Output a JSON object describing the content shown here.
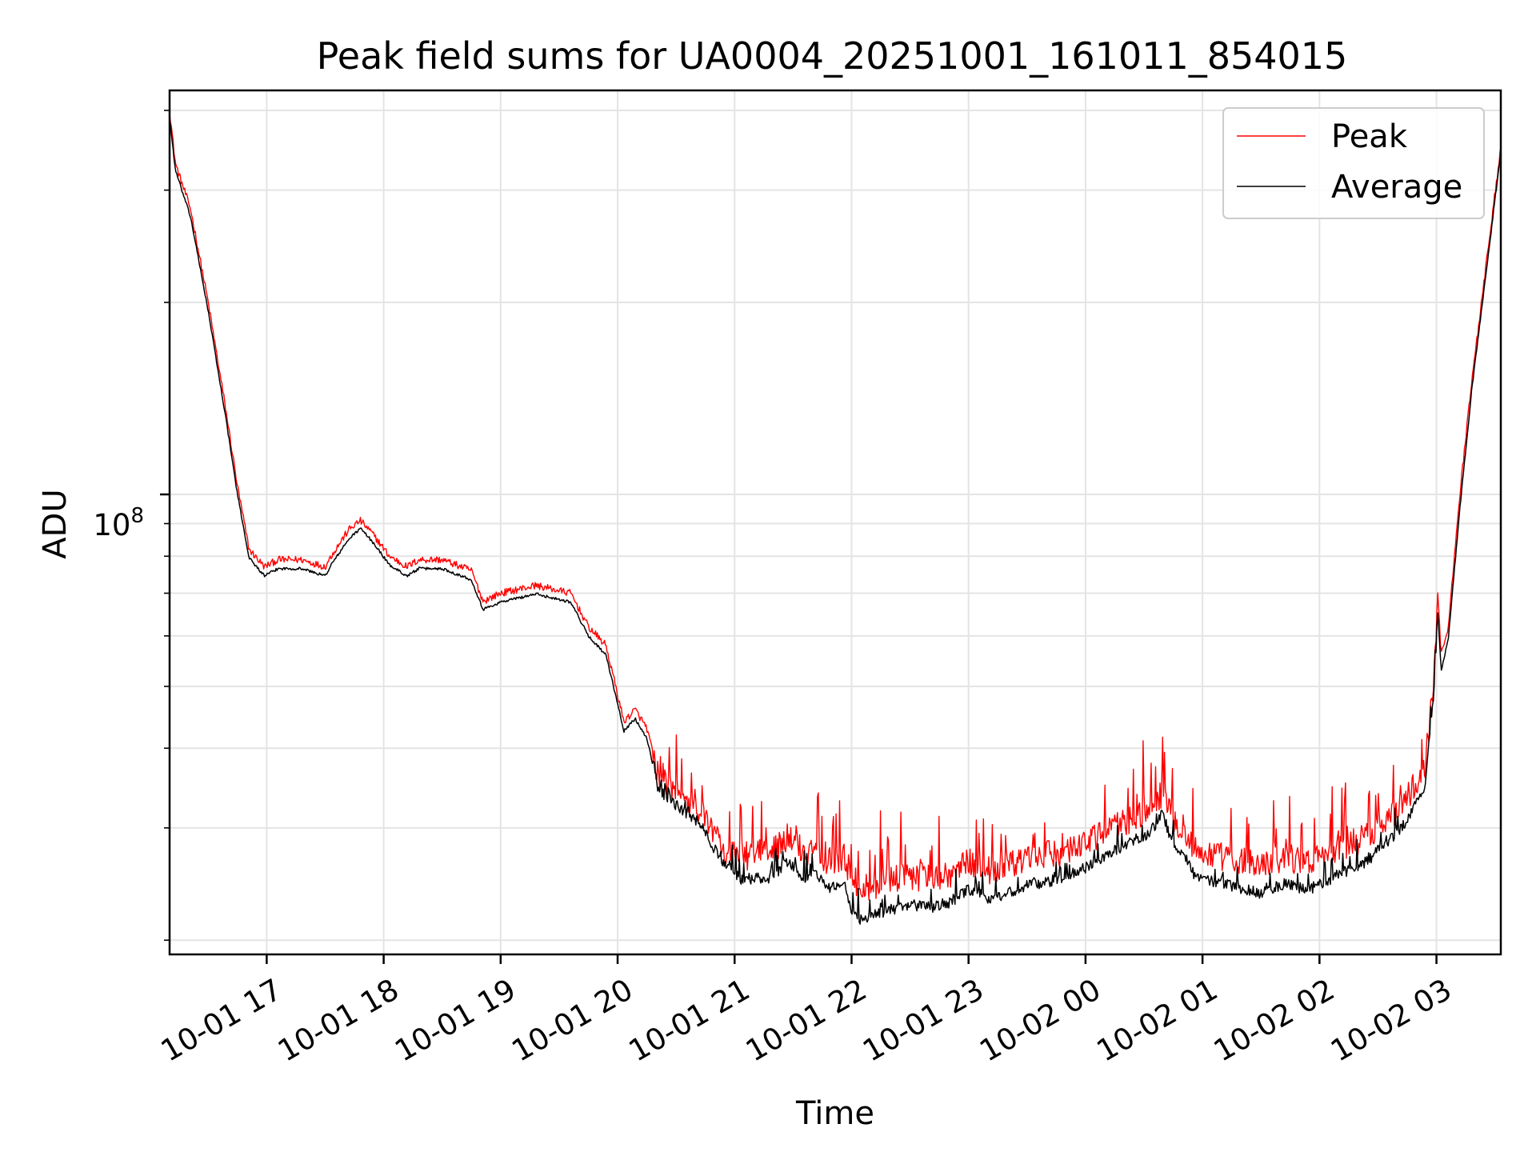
{
  "chart_data": {
    "type": "line",
    "title": "Peak field sums for UA0004_20251001_161011_854015",
    "xlabel": "Time",
    "ylabel": "ADU",
    "yscale": "log",
    "ylim": [
      19000000,
      430000000
    ],
    "xlim_hours": [
      16.17,
      27.55
    ],
    "grid": true,
    "legend_position": "upper right",
    "x_ticks": [
      "10-01 17",
      "10-01 18",
      "10-01 19",
      "10-01 20",
      "10-01 21",
      "10-01 22",
      "10-01 23",
      "10-02 00",
      "10-02 01",
      "10-02 02",
      "10-02 03"
    ],
    "x_tick_hours": [
      17,
      18,
      19,
      20,
      21,
      22,
      23,
      24,
      25,
      26,
      27
    ],
    "y_major_tick": {
      "base": "10",
      "exp": "8",
      "value": 100000000
    },
    "series": [
      {
        "name": "Peak",
        "color": "#ff0000",
        "x_hours": [
          16.17,
          16.22,
          16.35,
          16.5,
          16.65,
          16.75,
          16.85,
          16.98,
          17.1,
          17.3,
          17.5,
          17.55,
          17.7,
          17.8,
          17.9,
          18.05,
          18.2,
          18.3,
          18.5,
          18.75,
          18.85,
          19.0,
          19.3,
          19.6,
          19.75,
          19.9,
          20.03,
          20.05,
          20.15,
          20.25,
          20.35,
          20.5,
          20.7,
          20.9,
          21.05,
          21.3,
          21.45,
          21.6,
          21.7,
          21.8,
          21.95,
          22.0,
          22.1,
          22.3,
          22.5,
          22.7,
          22.85,
          23.0,
          23.2,
          23.5,
          23.8,
          24.1,
          24.3,
          24.55,
          24.65,
          24.75,
          24.85,
          24.95,
          25.2,
          25.5,
          25.7,
          25.9,
          26.1,
          26.4,
          26.7,
          26.9,
          26.98,
          27.01,
          27.04,
          27.1,
          27.2,
          27.3,
          27.45,
          27.55
        ],
        "values": [
          400000000,
          330000000,
          280000000,
          200000000,
          136000000,
          103000000,
          82000000,
          77000000,
          79000000,
          79000000,
          77000000,
          80000000,
          88000000,
          91000000,
          87000000,
          80000000,
          77000000,
          79000000,
          79000000,
          76000000,
          68000000,
          70000000,
          72000000,
          70000000,
          62000000,
          58000000,
          46000000,
          44000000,
          46000000,
          43000000,
          36000000,
          34000000,
          32000000,
          28000000,
          27000000,
          27500000,
          29000000,
          27500000,
          28000000,
          26500000,
          27000000,
          24500000,
          24000000,
          24800000,
          25200000,
          25000000,
          25500000,
          26500000,
          25700000,
          26800000,
          27500000,
          29000000,
          30500000,
          32000000,
          34000000,
          31000000,
          29500000,
          27500000,
          27000000,
          26200000,
          27000000,
          26500000,
          27500000,
          29000000,
          32500000,
          37000000,
          52000000,
          70000000,
          56000000,
          62000000,
          100000000,
          150000000,
          250000000,
          350000000
        ]
      },
      {
        "name": "Average",
        "color": "#000000",
        "x_hours": [
          16.17,
          16.22,
          16.35,
          16.5,
          16.65,
          16.75,
          16.85,
          16.98,
          17.1,
          17.3,
          17.5,
          17.55,
          17.7,
          17.8,
          17.9,
          18.05,
          18.2,
          18.3,
          18.5,
          18.75,
          18.85,
          19.0,
          19.3,
          19.6,
          19.75,
          19.9,
          20.03,
          20.05,
          20.15,
          20.25,
          20.35,
          20.5,
          20.7,
          20.9,
          21.05,
          21.3,
          21.45,
          21.6,
          21.7,
          21.8,
          21.95,
          22.0,
          22.1,
          22.3,
          22.5,
          22.7,
          22.85,
          23.0,
          23.2,
          23.5,
          23.8,
          24.1,
          24.3,
          24.55,
          24.65,
          24.75,
          24.85,
          24.95,
          25.2,
          25.5,
          25.7,
          25.9,
          26.1,
          26.4,
          26.7,
          26.9,
          26.98,
          27.01,
          27.04,
          27.1,
          27.2,
          27.3,
          27.45,
          27.55
        ],
        "values": [
          390000000,
          322000000,
          272000000,
          194000000,
          132000000,
          100000000,
          79500000,
          74500000,
          76500000,
          76500000,
          74500000,
          77500000,
          85000000,
          88500000,
          84500000,
          77500000,
          74500000,
          76500000,
          76500000,
          73500000,
          66000000,
          67800000,
          69800000,
          67800000,
          60000000,
          56000000,
          44500000,
          42500000,
          44500000,
          41500000,
          34500000,
          32500000,
          30500000,
          26500000,
          25000000,
          25000000,
          26500000,
          25000000,
          25500000,
          24200000,
          24500000,
          22000000,
          21500000,
          22300000,
          22700000,
          22500000,
          23000000,
          24000000,
          23200000,
          24300000,
          25000000,
          26500000,
          28000000,
          29500000,
          31500000,
          28500000,
          27000000,
          25000000,
          24500000,
          23700000,
          24500000,
          24000000,
          25000000,
          26500000,
          30000000,
          34500000,
          49000000,
          66000000,
          53000000,
          59000000,
          95000000,
          145000000,
          243000000,
          345000000
        ]
      }
    ]
  }
}
